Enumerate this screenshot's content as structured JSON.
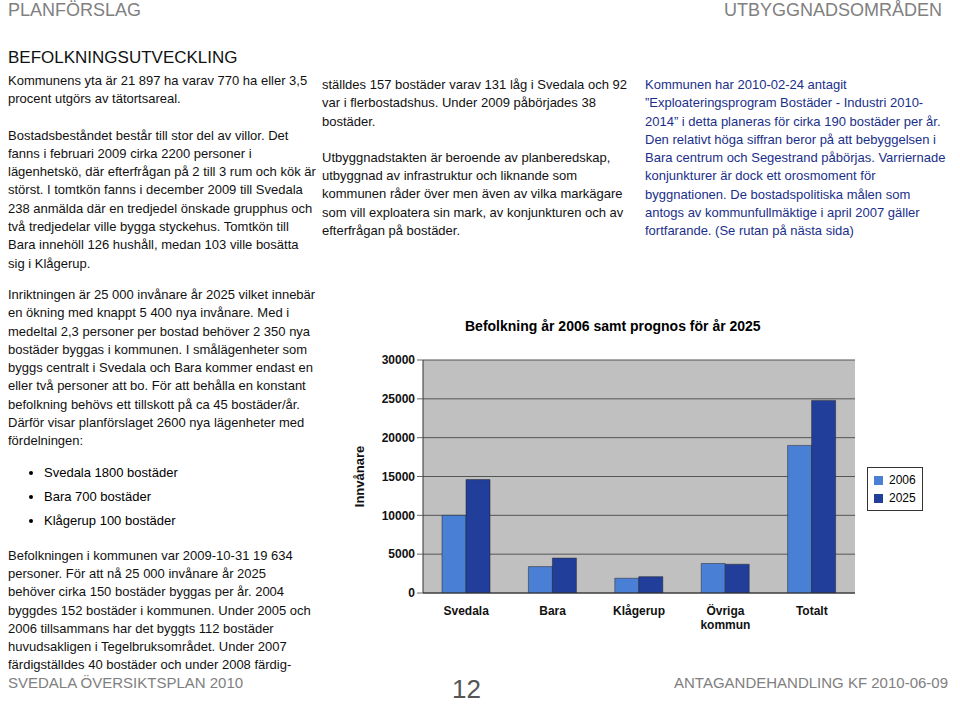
{
  "header": {
    "left": "PLANFÖRSLAG",
    "right": "UTBYGGNADSOMRÅDEN"
  },
  "title": "BEFOLKNINGSUTVECKLING",
  "column1_top": [
    "Kommunens yta är 21 897 ha varav 770 ha eller 3,5 procent utgörs av tätortsareal.",
    "Bostadsbeståndet består till stor del av villor. Det fanns i februari 2009 cirka 2200 personer i lägenhetskö, där efterfrågan på 2 till 3 rum och kök är störst. I tomtkön fanns i december 2009 till Svedala 238 anmälda där en tredjedel önskade grupphus och två tredjedelar ville bygga styckehus. Tomtkön till Bara innehöll 126 hushåll, medan 103 ville bosätta sig i Klågerup."
  ],
  "column1_bottom": {
    "intro": "Inriktningen är 25 000 invånare år 2025 vilket innebär en ökning med knappt 5 400 nya invånare. Med i medeltal 2,3 personer per bostad behöver 2 350 nya bostäder byggas i kommunen. I smålägenheter som byggs centralt i Svedala och Bara kommer endast en eller två personer att bo. För att behålla en konstant befolkning behövs ett tillskott på ca 45 bostäder/år. Därför visar planförslaget 2600 nya lägenheter med fördelningen:",
    "bullets": [
      "Svedala 1800 bostäder",
      "Bara 700 bostäder",
      "Klågerup 100 bostäder"
    ],
    "after": "Befolkningen i kommunen var 2009-10-31 19 634 personer. För att nå 25 000 invånare år 2025 behöver cirka 150 bostäder byggas per år. 2004 byggdes 152 bostäder i kommunen. Under 2005 och 2006 tillsammans har det byggts 112 bostäder huvudsakligen i Tegelbruksområdet. Under 2007 färdigställdes 40 bostäder och under 2008 färdig-"
  },
  "column2": [
    "ställdes 157 bostäder varav 131 låg i Svedala och 92 var i flerbostadshus. Under 2009 påbörjades 38 bostäder.",
    "Utbyggnadstakten är beroende av planberedskap, utbyggnad av infrastruktur och liknande som kommunen råder över men även av vilka markägare som vill exploatera sin mark, av konjunkturen och av efterfrågan på bostäder."
  ],
  "column3": [
    "Kommunen har 2010-02-24 antagit ”Exploateringsprogram Bostäder - Industri 2010-2014” i detta planeras för cirka 190 bostäder per år. Den relativt höga siffran beror på att bebyggelsen i Bara centrum och Segestrand påbörjas. Varriernade konjunkturer är dock ett orosmoment för byggnationen. De bostadspolitiska målen som antogs av kommunfullmäktige i april 2007 gäller fortfarande. (Se rutan på nästa sida)"
  ],
  "chart_data": {
    "type": "bar",
    "title": "Befolkning år 2006 samt prognos för år 2025",
    "y_label": "Innvånare",
    "categories": [
      "Svedala",
      "Bara",
      "Klågerup",
      "Övriga kommun",
      "Totalt"
    ],
    "series": [
      {
        "name": "2006",
        "color": "#4a7fd6",
        "values": [
          10000,
          3400,
          1900,
          3800,
          19000
        ]
      },
      {
        "name": "2025",
        "color": "#213e9a",
        "values": [
          14600,
          4500,
          2100,
          3700,
          24800
        ]
      }
    ],
    "ylim": [
      0,
      30000
    ],
    "yticks": [
      0,
      5000,
      10000,
      15000,
      20000,
      25000,
      30000
    ],
    "grid": true,
    "legend": "right"
  },
  "footer": {
    "left": "SVEDALA ÖVERSIKTSPLAN 2010",
    "page": 12,
    "right": "ANTAGANDEHANDLING KF 2010-06-09"
  }
}
